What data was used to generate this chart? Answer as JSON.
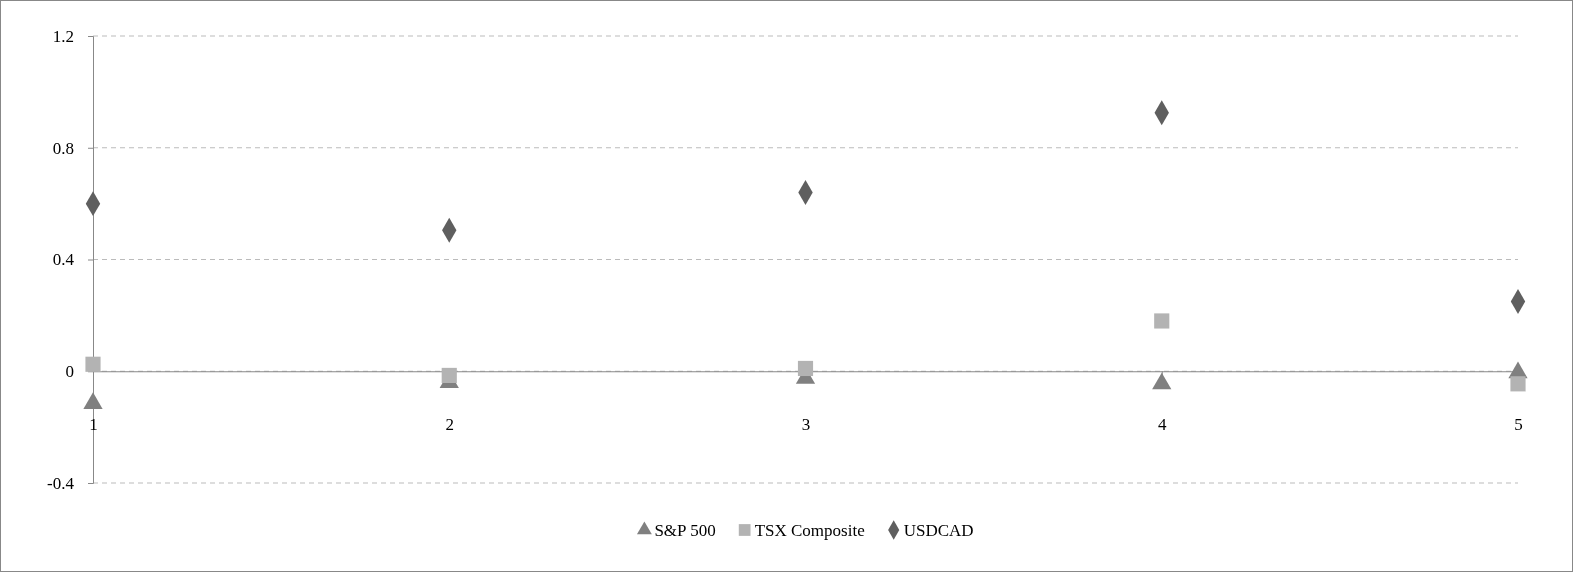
{
  "chart_data": {
    "type": "scatter",
    "x": [
      1,
      2,
      3,
      4,
      5
    ],
    "xlim": [
      1,
      5
    ],
    "xticks": [
      1,
      2,
      3,
      4,
      5
    ],
    "ylim": [
      -0.4,
      1.2
    ],
    "yticks": [
      -0.4,
      0,
      0.4,
      0.8,
      1.2
    ],
    "grid": "y",
    "legend": "bottom",
    "series": [
      {
        "name": "S&P 500",
        "color": "#808080",
        "marker": "triangle",
        "values": [
          -0.115,
          -0.04,
          -0.025,
          -0.045,
          -0.005
        ]
      },
      {
        "name": "TSX Composite",
        "color": "#b3b3b3",
        "marker": "square",
        "values": [
          0.025,
          -0.015,
          0.01,
          0.18,
          -0.045
        ]
      },
      {
        "name": "USDCAD",
        "color": "#5f5f5f",
        "marker": "diamond",
        "values": [
          0.6,
          0.505,
          0.64,
          0.925,
          0.25
        ]
      }
    ]
  }
}
